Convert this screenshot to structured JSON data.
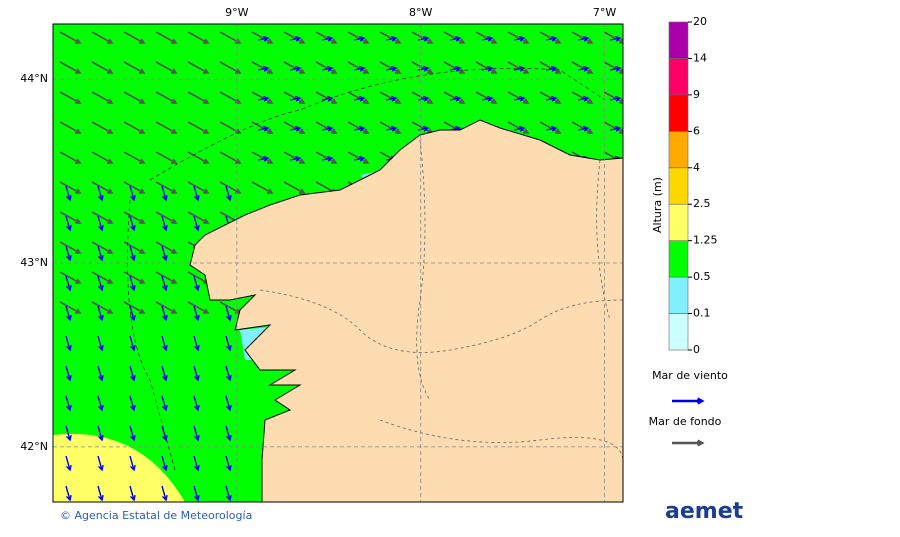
{
  "map": {
    "lonlim": [
      -10,
      -6.9
    ],
    "latlim": [
      41.7,
      44.3
    ],
    "lon_ticks": [
      {
        "value": -9,
        "label": "9°W"
      },
      {
        "value": -8,
        "label": "8°W"
      },
      {
        "value": -7,
        "label": "7°W"
      }
    ],
    "lat_ticks": [
      {
        "value": 44,
        "label": "44°N"
      },
      {
        "value": 43,
        "label": "43°N"
      },
      {
        "value": 42,
        "label": "42°N"
      }
    ]
  },
  "legend": {
    "title": "Altura (m)",
    "levels": [
      0,
      0.1,
      0.5,
      1.25,
      2.5,
      4,
      6,
      9,
      14,
      20
    ],
    "colors": [
      "#ccffff",
      "#80f0ff",
      "#00ff00",
      "#ffff66",
      "#ffd700",
      "#ffaa00",
      "#ff0000",
      "#ff0066",
      "#aa00aa"
    ],
    "wind_sea": {
      "label": "Mar de viento",
      "color": "#0000ee"
    },
    "swell": {
      "label": "Mar de fondo",
      "color": "#555555"
    }
  },
  "footer": {
    "copyright": "© Agencia Estatal de Meteorología",
    "logo": "aemet"
  }
}
